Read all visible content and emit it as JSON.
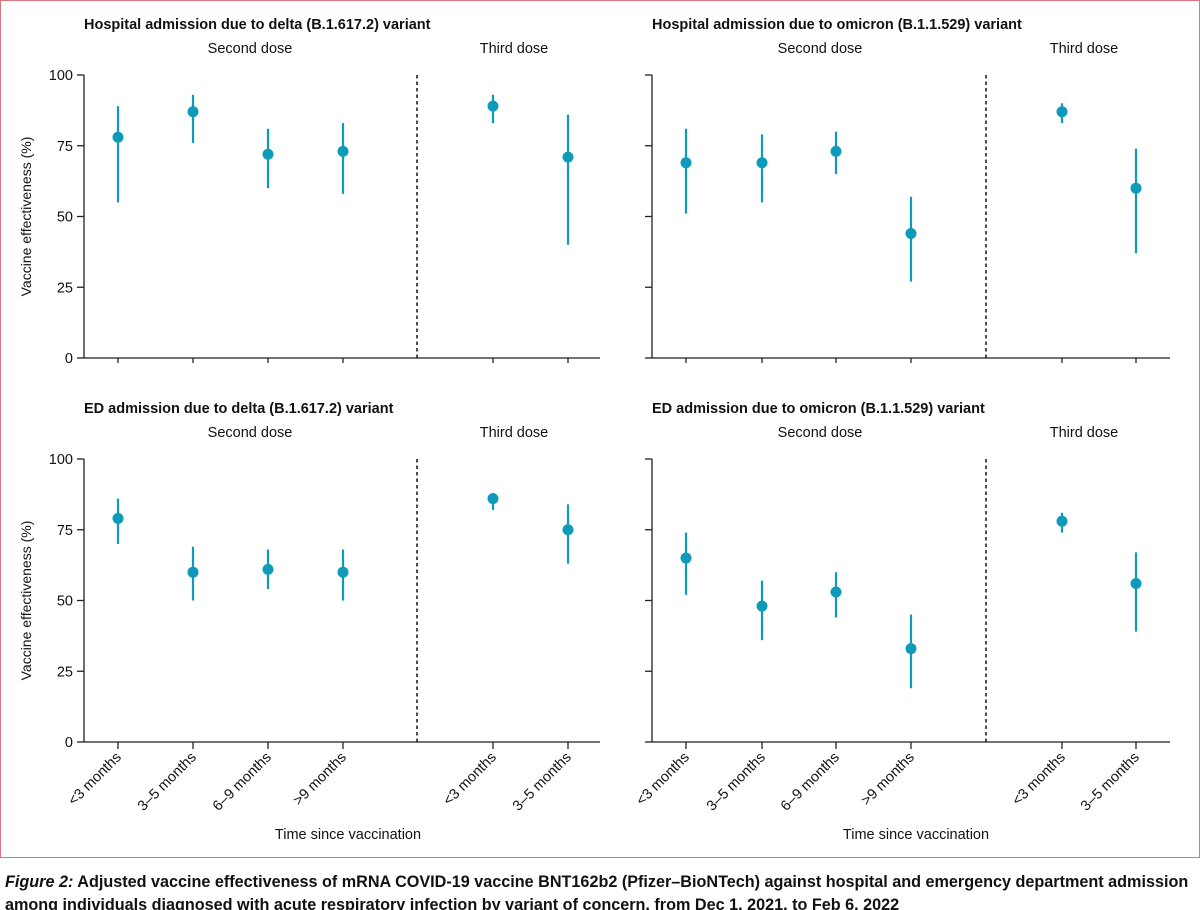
{
  "colors": {
    "marker": "#0e9bba",
    "axis": "#222222",
    "frame": "#d9757f",
    "text": "#111111"
  },
  "caption": {
    "label": "Figure 2:",
    "text": " Adjusted vaccine effectiveness of mRNA COVID-19 vaccine BNT162b2 (Pfizer–BioNTech) against hospital and emergency department admission among individuals diagnosed with acute respiratory infection by variant of concern, from Dec 1, 2021, to Feb 6, 2022"
  },
  "xlabels": {
    "left": "Time since vaccination",
    "right": "Time since vaccination"
  },
  "chart_data": [
    {
      "type": "scatter",
      "title": "Hospital admission due to delta (B.1.617.2) variant",
      "ylabel": "Vaccine effectiveness  (%)",
      "ylim": [
        0,
        100
      ],
      "yticks": [
        "0",
        "25",
        "50",
        "75",
        "100"
      ],
      "groups": [
        {
          "label": "Second dose",
          "categories": [
            "<3 months",
            "3–5 months",
            "6–9 months",
            ">9 months"
          ],
          "values": [
            78,
            87,
            72,
            73
          ],
          "lower": [
            55,
            76,
            60,
            58
          ],
          "upper": [
            89,
            93,
            81,
            83
          ]
        },
        {
          "label": "Third dose",
          "categories": [
            "<3 months",
            "3–5 months"
          ],
          "values": [
            89,
            71
          ],
          "lower": [
            83,
            40
          ],
          "upper": [
            93,
            86
          ]
        }
      ]
    },
    {
      "type": "scatter",
      "title": "Hospital admission due to omicron (B.1.1.529) variant",
      "ylim": [
        0,
        100
      ],
      "groups": [
        {
          "label": "Second dose",
          "categories": [
            "<3 months",
            "3–5 months",
            "6–9 months",
            ">9 months"
          ],
          "values": [
            69,
            69,
            73,
            44
          ],
          "lower": [
            51,
            55,
            65,
            27
          ],
          "upper": [
            81,
            79,
            80,
            57
          ]
        },
        {
          "label": "Third dose",
          "categories": [
            "<3 months",
            "3–5 months"
          ],
          "values": [
            87,
            60
          ],
          "lower": [
            83,
            37
          ],
          "upper": [
            90,
            74
          ]
        }
      ]
    },
    {
      "type": "scatter",
      "title": "ED admission due to delta (B.1.617.2) variant",
      "ylabel": "Vaccine effectiveness  (%)",
      "ylim": [
        0,
        100
      ],
      "yticks": [
        "0",
        "25",
        "50",
        "75",
        "100"
      ],
      "groups": [
        {
          "label": "Second dose",
          "categories": [
            "<3 months",
            "3–5 months",
            "6–9 months",
            ">9 months"
          ],
          "values": [
            79,
            60,
            61,
            60
          ],
          "lower": [
            70,
            50,
            54,
            50
          ],
          "upper": [
            86,
            69,
            68,
            68
          ]
        },
        {
          "label": "Third dose",
          "categories": [
            "<3 months",
            "3–5 months"
          ],
          "values": [
            86,
            75
          ],
          "lower": [
            82,
            63
          ],
          "upper": [
            88,
            84
          ]
        }
      ]
    },
    {
      "type": "scatter",
      "title": "ED admission due to omicron (B.1.1.529) variant",
      "ylim": [
        0,
        100
      ],
      "groups": [
        {
          "label": "Second dose",
          "categories": [
            "<3 months",
            "3–5 months",
            "6–9 months",
            ">9 months"
          ],
          "values": [
            65,
            48,
            53,
            33
          ],
          "lower": [
            52,
            36,
            44,
            19
          ],
          "upper": [
            74,
            57,
            60,
            45
          ]
        },
        {
          "label": "Third dose",
          "categories": [
            "<3 months",
            "3–5 months"
          ],
          "values": [
            78,
            56
          ],
          "lower": [
            74,
            39
          ],
          "upper": [
            81,
            67
          ]
        }
      ]
    }
  ]
}
